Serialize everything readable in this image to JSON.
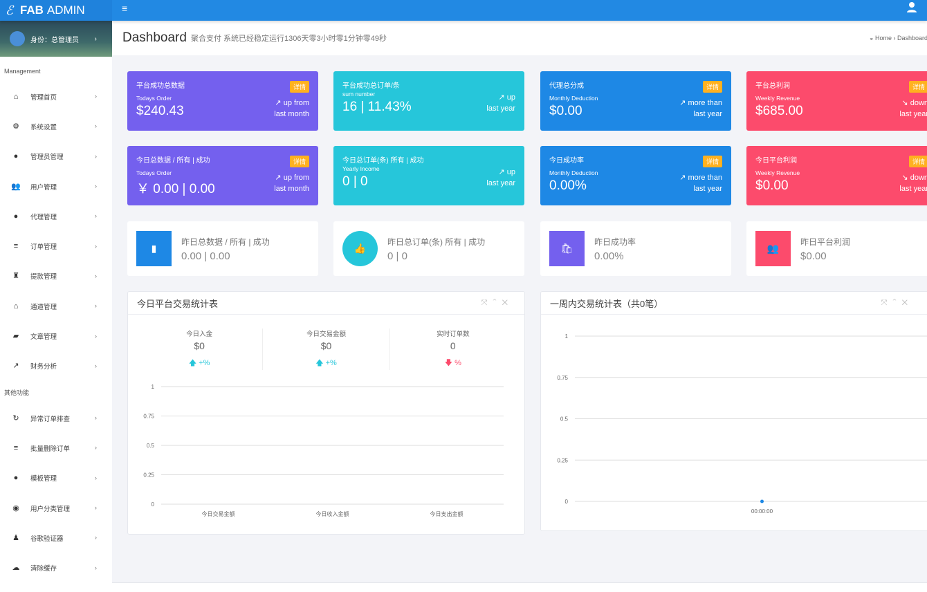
{
  "brand": {
    "name_bold": "FAB",
    "name": "ADMIN"
  },
  "profile": {
    "label": "身份：总管理员"
  },
  "sidebar": {
    "section1": "Management",
    "items1": [
      {
        "label": "管理首页",
        "icon": "home-icon",
        "glyph": "⌂"
      },
      {
        "label": "系统设置",
        "icon": "gears-icon",
        "glyph": "⚙"
      },
      {
        "label": "管理员管理",
        "icon": "user-circle-icon",
        "glyph": "●"
      },
      {
        "label": "用户管理",
        "icon": "users-icon",
        "glyph": "👥"
      },
      {
        "label": "代理管理",
        "icon": "user-circle-icon",
        "glyph": "●"
      },
      {
        "label": "订单管理",
        "icon": "list-icon",
        "glyph": "≡"
      },
      {
        "label": "提款管理",
        "icon": "money-bag-icon",
        "glyph": "♜"
      },
      {
        "label": "通道管理",
        "icon": "bank-icon",
        "glyph": "⌂"
      },
      {
        "label": "文章管理",
        "icon": "book-icon",
        "glyph": "▰"
      },
      {
        "label": "财务分析",
        "icon": "line-chart-icon",
        "glyph": "↗"
      }
    ],
    "section2": "其他功能",
    "items2": [
      {
        "label": "异常订单排查",
        "icon": "refresh-icon",
        "glyph": "↻"
      },
      {
        "label": "批量删除订单",
        "icon": "list-icon",
        "glyph": "≡"
      },
      {
        "label": "模板管理",
        "icon": "apple-icon",
        "glyph": "●"
      },
      {
        "label": "用户分类管理",
        "icon": "wechat-icon",
        "glyph": "◉"
      },
      {
        "label": "谷歌验证器",
        "icon": "user-icon",
        "glyph": "♟"
      },
      {
        "label": "清除缓存",
        "icon": "cloud-icon",
        "glyph": "☁"
      }
    ]
  },
  "header": {
    "title": "Dashboard",
    "subtitle": "聚合支付 系统已经稳定运行1306天零3小时零1分钟零49秒",
    "breadcrumb_home": "Home",
    "breadcrumb_current": "Dashboard"
  },
  "cards": [
    {
      "title": "平台成功总数据",
      "sub": "Todays Order",
      "value": "$240.43",
      "badge": "详情",
      "trend1": "up from",
      "trend2": "last month",
      "dir": "up"
    },
    {
      "title": "平台成功总订单/条",
      "sub": "sum number",
      "value": "16 | 11.43%",
      "badge": "",
      "trend1": "up",
      "trend2": "last year",
      "dir": "up"
    },
    {
      "title": "代理总分成",
      "sub": "Monthly Deduction",
      "value": "$0.00",
      "badge": "详情",
      "trend1": "more than",
      "trend2": "last year",
      "dir": "up"
    },
    {
      "title": "平台总利润",
      "sub": "Weekly Revenue",
      "value": "$685.00",
      "badge": "详情",
      "trend1": "down",
      "trend2": "last year",
      "dir": "down"
    },
    {
      "title": "今日总数据 / 所有 | 成功",
      "sub": "Todays Order",
      "value": "￥ 0.00 | 0.00",
      "badge": "详情",
      "trend1": "up from",
      "trend2": "last month",
      "dir": "up"
    },
    {
      "title": "今日总订单(条) 所有 | 成功",
      "sub": "Yearly Income",
      "value": "0  | 0",
      "badge": "",
      "trend1": "up",
      "trend2": "last year",
      "dir": "up"
    },
    {
      "title": "今日成功率",
      "sub": "Monthly Deduction",
      "value": "0.00%",
      "badge": "详情",
      "trend1": "more than",
      "trend2": "last year",
      "dir": "up"
    },
    {
      "title": "今日平台利润",
      "sub": "Weekly Revenue",
      "value": "$0.00",
      "badge": "详情",
      "trend1": "down",
      "trend2": "last year",
      "dir": "down"
    }
  ],
  "mini": [
    {
      "label": "昨日总数据 / 所有 | 成功",
      "value": "0.00 | 0.00",
      "icon": "bar-chart-icon",
      "glyph": "▮",
      "color": "#1e88e5"
    },
    {
      "label": "昨日总订单(条) 所有 | 成功",
      "value": "0  | 0",
      "icon": "thumbs-up-icon",
      "glyph": "👍",
      "color": "#26c6da"
    },
    {
      "label": "昨日成功率",
      "value": "0.00%",
      "icon": "shopping-bag-icon",
      "glyph": "🛍",
      "color": "#7460ee"
    },
    {
      "label": "昨日平台利润",
      "value": "$0.00",
      "icon": "users-icon",
      "glyph": "👥",
      "color": "#fc4b6c"
    }
  ],
  "panel_left": {
    "title": "今日平台交易统计表",
    "stats": [
      {
        "label": "今日入金",
        "value": "$0",
        "change": "+%",
        "dir": "up"
      },
      {
        "label": "今日交易金额",
        "value": "$0",
        "change": "+%",
        "dir": "up"
      },
      {
        "label": "实时订单数",
        "value": "0",
        "change": "%",
        "dir": "down"
      }
    ]
  },
  "panel_right": {
    "title": "一周内交易统计表（共0笔）"
  },
  "chart_data": [
    {
      "type": "bar",
      "categories": [
        "今日交易金额",
        "今日收入金额",
        "今日支出金额"
      ],
      "values": [
        0,
        0,
        0
      ],
      "ylim": [
        0,
        1
      ],
      "yticks": [
        "0",
        "0.25",
        "0.5",
        "0.75",
        "1"
      ],
      "grid": true
    },
    {
      "type": "line",
      "x": [
        "00:00:00"
      ],
      "values": [
        0
      ],
      "ylim": [
        0,
        1
      ],
      "yticks": [
        "0",
        "0.25",
        "0.5",
        "0.75",
        "1"
      ],
      "grid": true,
      "color": "#1e88e5"
    }
  ]
}
